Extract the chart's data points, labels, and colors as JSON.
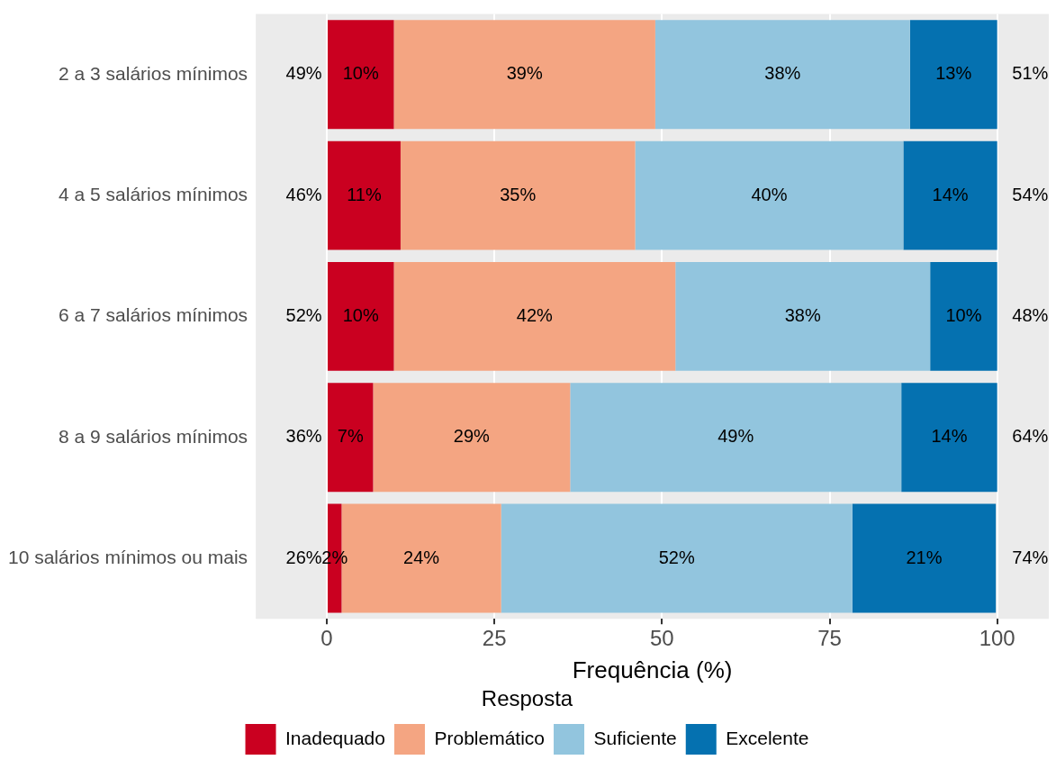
{
  "chart_data": {
    "type": "bar",
    "orientation": "horizontal",
    "stacked": true,
    "xlabel": "Frequência (%)",
    "legend_title": "Resposta",
    "legend": "bottom",
    "grid": "x",
    "categories": [
      "2 a 3 salários mínimos",
      "4 a 5 salários mínimos",
      "6 a 7 salários mínimos",
      "8 a 9 salários mínimos",
      "10 salários mínimos ou mais"
    ],
    "xlim": [
      -10.6,
      107.7
    ],
    "xticks": [
      0,
      25,
      50,
      75,
      100
    ],
    "series": [
      {
        "name": "Inadequado",
        "color": "#ca0020",
        "values": [
          10,
          11,
          10,
          6.9,
          2.2
        ],
        "value_labels": [
          "10%",
          "11%",
          "10%",
          "7%",
          "2%"
        ]
      },
      {
        "name": "Problemático",
        "color": "#f4a582",
        "values": [
          39,
          35,
          42,
          29.4,
          23.8
        ],
        "value_labels": [
          "39%",
          "35%",
          "42%",
          "29%",
          "24%"
        ]
      },
      {
        "name": "Suficiente",
        "color": "#92c5de",
        "values": [
          38,
          40,
          38,
          49.4,
          52.4
        ],
        "value_labels": [
          "38%",
          "40%",
          "38%",
          "49%",
          "52%"
        ]
      },
      {
        "name": "Excelente",
        "color": "#0571b0",
        "values": [
          13,
          14,
          10,
          14.3,
          21.4
        ],
        "value_labels": [
          "13%",
          "14%",
          "10%",
          "14%",
          "21%"
        ]
      }
    ],
    "annotations": [
      "49%",
      "46%",
      "52%",
      "36%",
      "26%",
      "51%",
      "54%",
      "48%",
      "64%",
      "74%"
    ]
  }
}
